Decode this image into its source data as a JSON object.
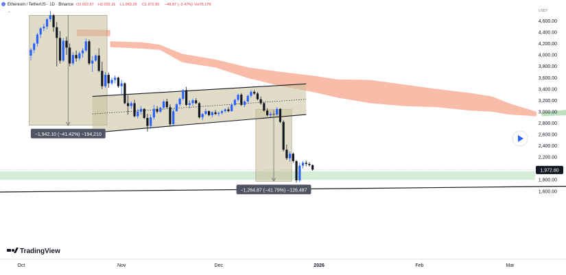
{
  "header": {
    "symbol": "Ethereum / TetherUS · 1D · Binance",
    "open": "O2,022.67",
    "high": "H2,032.31",
    "low": "L1,963.29",
    "close": "C1,972.80",
    "change": "−49.87 (−2.47%)",
    "volume": "Vol76.17K"
  },
  "currency": "USDT",
  "logo_text": "TradingView",
  "colors": {
    "up": "#2962ff",
    "down": "#131722",
    "cloud_bear": "#f7a58c",
    "cloud_bull": "#a5d6a7",
    "measure_box": "#c8c09a",
    "support_zone": "#c8e6c9",
    "measure_label": "#505463"
  },
  "chart_data": {
    "type": "candlestick",
    "title": "Ethereum / TetherUS · 1D · Binance",
    "ylim": [
      1600,
      4800
    ],
    "y_ticks": [
      "4,600.00",
      "4,400.00",
      "4,200.00",
      "4,000.00",
      "3,800.00",
      "3,600.00",
      "3,400.00",
      "3,200.00",
      "3,000.00",
      "2,800.00",
      "2,600.00",
      "2,400.00",
      "2,200.00",
      "2,000.00",
      "1,800.00",
      "1,600.00"
    ],
    "x_ticks": [
      {
        "label": "Oct",
        "day": 0
      },
      {
        "label": "Nov",
        "day": 31
      },
      {
        "label": "Dec",
        "day": 61
      },
      {
        "label": "2026",
        "day": 92,
        "bold": true
      },
      {
        "label": "Feb",
        "day": 123
      },
      {
        "label": "Mar",
        "day": 151
      }
    ],
    "last_price": "1,972.80",
    "last_value": 1972.8,
    "candles": [
      [
        3990,
        4120,
        3900,
        4090
      ],
      [
        4090,
        4220,
        4030,
        4200
      ],
      [
        4200,
        4390,
        4150,
        4360
      ],
      [
        4360,
        4490,
        4300,
        4470
      ],
      [
        4470,
        4550,
        4420,
        4500
      ],
      [
        4500,
        4650,
        4450,
        4630
      ],
      [
        4630,
        4780,
        4580,
        4700
      ],
      [
        4700,
        4720,
        4410,
        4490
      ],
      [
        4490,
        4580,
        3800,
        4300
      ],
      [
        4300,
        4420,
        3850,
        3900
      ],
      [
        3900,
        4300,
        3880,
        4250
      ],
      [
        4250,
        4320,
        4000,
        4130
      ],
      [
        4130,
        4200,
        3800,
        3850
      ],
      [
        3850,
        4050,
        3820,
        4000
      ],
      [
        4000,
        4080,
        3880,
        3940
      ],
      [
        3940,
        4060,
        3900,
        4030
      ],
      [
        4030,
        4120,
        3950,
        4080
      ],
      [
        4080,
        4290,
        4050,
        4240
      ],
      [
        4240,
        4270,
        3820,
        3850
      ],
      [
        3850,
        3980,
        3700,
        3900
      ],
      [
        3900,
        4010,
        3880,
        3990
      ],
      [
        3990,
        4120,
        3700,
        3720
      ],
      [
        3720,
        3880,
        3400,
        3450
      ],
      [
        3450,
        3700,
        3420,
        3650
      ],
      [
        3650,
        3690,
        3420,
        3500
      ],
      [
        3500,
        3600,
        3470,
        3560
      ],
      [
        3560,
        3640,
        3500,
        3600
      ],
      [
        3600,
        3620,
        3420,
        3450
      ],
      [
        3450,
        3560,
        3300,
        3500
      ],
      [
        3500,
        3520,
        3130,
        3150
      ],
      [
        3150,
        3290,
        2950,
        3100
      ],
      [
        3100,
        3180,
        3050,
        3150
      ],
      [
        3150,
        3210,
        2900,
        2920
      ],
      [
        2920,
        3050,
        2880,
        3000
      ],
      [
        3000,
        3100,
        2950,
        3050
      ],
      [
        3050,
        3060,
        2870,
        2890
      ],
      [
        2890,
        2960,
        2650,
        2750
      ],
      [
        2750,
        2950,
        2700,
        2900
      ],
      [
        2900,
        3120,
        2860,
        3050
      ],
      [
        3050,
        3100,
        2970,
        3000
      ],
      [
        3000,
        3090,
        2980,
        3070
      ],
      [
        3070,
        3200,
        3050,
        3180
      ],
      [
        3180,
        3230,
        3060,
        3080
      ],
      [
        3080,
        3130,
        2750,
        2780
      ],
      [
        2780,
        3050,
        2760,
        3010
      ],
      [
        3010,
        3150,
        3000,
        3130
      ],
      [
        3130,
        3250,
        3100,
        3230
      ],
      [
        3230,
        3400,
        3200,
        3380
      ],
      [
        3380,
        3440,
        3100,
        3120
      ],
      [
        3120,
        3200,
        3060,
        3150
      ],
      [
        3150,
        3230,
        3100,
        3200
      ],
      [
        3200,
        3240,
        3130,
        3150
      ],
      [
        3150,
        3170,
        2880,
        2900
      ],
      [
        2900,
        2980,
        2850,
        2960
      ],
      [
        2960,
        3050,
        2940,
        3010
      ],
      [
        3010,
        3020,
        2920,
        2940
      ],
      [
        2940,
        3010,
        2900,
        2990
      ],
      [
        2990,
        3030,
        2940,
        2960
      ],
      [
        2960,
        3000,
        2920,
        2980
      ],
      [
        2980,
        3030,
        2950,
        3010
      ],
      [
        3010,
        3060,
        2980,
        3040
      ],
      [
        3040,
        3080,
        2990,
        3010
      ],
      [
        3010,
        3150,
        3000,
        3120
      ],
      [
        3120,
        3230,
        3100,
        3210
      ],
      [
        3210,
        3320,
        3180,
        3300
      ],
      [
        3300,
        3330,
        3100,
        3120
      ],
      [
        3120,
        3200,
        3080,
        3180
      ],
      [
        3180,
        3300,
        3160,
        3280
      ],
      [
        3280,
        3380,
        3250,
        3350
      ],
      [
        3350,
        3380,
        3300,
        3320
      ],
      [
        3320,
        3350,
        3200,
        3220
      ],
      [
        3220,
        3270,
        3120,
        3150
      ],
      [
        3150,
        3170,
        3000,
        3020
      ],
      [
        3020,
        3060,
        2920,
        2940
      ],
      [
        2940,
        3000,
        2900,
        2960
      ],
      [
        2960,
        3010,
        2930,
        2950
      ],
      [
        2950,
        3080,
        2930,
        3050
      ],
      [
        3050,
        3060,
        2800,
        2820
      ],
      [
        2820,
        2850,
        2300,
        2330
      ],
      [
        2330,
        2420,
        2150,
        2180
      ],
      [
        2180,
        2300,
        2120,
        2260
      ],
      [
        2260,
        2280,
        2100,
        2130
      ],
      [
        2130,
        2150,
        1750,
        1790
      ],
      [
        1790,
        2100,
        1760,
        2050
      ],
      [
        2050,
        2130,
        2000,
        2100
      ],
      [
        2100,
        2140,
        2040,
        2080
      ],
      [
        2080,
        2110,
        2030,
        2060
      ],
      [
        2060,
        2070,
        1960,
        1980
      ]
    ],
    "cloud_bear": [
      [
        13,
        4450,
        4330
      ],
      [
        19,
        4440,
        4330
      ],
      [
        19,
        4240,
        4140
      ],
      [
        25,
        4220,
        4110
      ],
      [
        28,
        4180,
        4090
      ],
      [
        32,
        4020,
        3870
      ],
      [
        38,
        3920,
        3780
      ],
      [
        44,
        3780,
        3590
      ],
      [
        50,
        3700,
        3450
      ],
      [
        56,
        3630,
        3340
      ],
      [
        60,
        3570,
        3250
      ],
      [
        66,
        3560,
        3150
      ],
      [
        72,
        3480,
        3100
      ],
      [
        78,
        3400,
        3080
      ],
      [
        84,
        3330,
        3020
      ],
      [
        88,
        3270,
        3000
      ],
      [
        91,
        3150,
        2950
      ],
      [
        96,
        3000,
        2920
      ]
    ],
    "cloud_bull": [
      [
        97,
        2990,
        2920
      ],
      [
        104,
        3060,
        2950
      ],
      [
        110,
        3160,
        3000
      ],
      [
        115,
        3180,
        3020
      ],
      [
        120,
        3170,
        3030
      ]
    ],
    "cloud_bear_future": [
      [
        120,
        3030,
        2950
      ],
      [
        125,
        2960,
        2700
      ],
      [
        130,
        2850,
        2540
      ],
      [
        135,
        2760,
        2440
      ],
      [
        138,
        2600,
        2350
      ]
    ],
    "channel": {
      "upper": [
        [
          19,
          3270
        ],
        [
          85,
          3490
        ]
      ],
      "lower": [
        [
          19,
          2630
        ],
        [
          85,
          2950
        ]
      ],
      "mid": [
        [
          19,
          2960
        ],
        [
          85,
          3220
        ]
      ]
    },
    "support_trendline": [
      [
        -6,
        1580
      ],
      [
        146,
        1730
      ]
    ],
    "support_zone": [
      1800,
      1950
    ],
    "measurements": [
      {
        "x1": 0,
        "x2": 23,
        "y_top": 4700,
        "y_bottom": 2760,
        "label": "−1,942.10 (−41.42%) −194,210"
      },
      {
        "x1": 70,
        "x2": 80,
        "y_top": 3040,
        "y_bottom": 1775,
        "label": "−1,264.87 (−41.79%) −126,487"
      }
    ]
  }
}
